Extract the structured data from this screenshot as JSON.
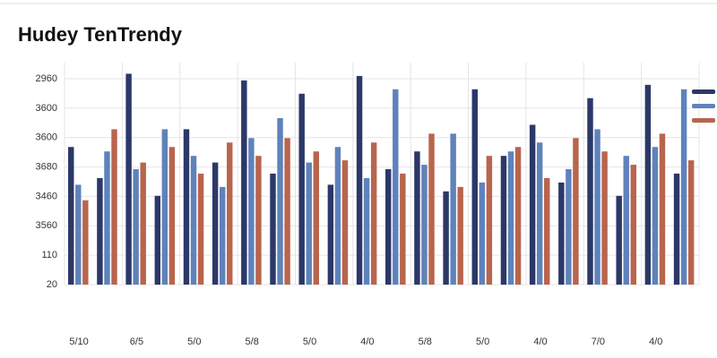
{
  "chart_data": {
    "type": "bar",
    "title": "Hudey TenTrendy",
    "y_labels": [
      "2960",
      "3600",
      "3600",
      "3680",
      "3460",
      "3560",
      "110",
      "20"
    ],
    "categories": [
      "5/10",
      null,
      "6/5",
      null,
      "5/0",
      null,
      "5/8",
      null,
      "5/0",
      null,
      "4/0",
      null,
      "5/8",
      null,
      "5/0",
      null,
      "4/0",
      null,
      "7/0",
      null,
      "4/0",
      null
    ],
    "ylim": [
      0,
      100
    ],
    "grid": true,
    "series": [
      {
        "color": "#2b3868",
        "values": [
          62,
          48,
          95,
          40,
          70,
          55,
          92,
          50,
          86,
          45,
          94,
          52,
          60,
          42,
          88,
          58,
          72,
          46,
          84,
          40,
          90,
          50
        ]
      },
      {
        "color": "#5f82bb",
        "values": [
          45,
          60,
          52,
          70,
          58,
          44,
          66,
          75,
          55,
          62,
          48,
          88,
          54,
          68,
          46,
          60,
          64,
          52,
          70,
          58,
          62,
          88
        ]
      },
      {
        "color": "#b8654e",
        "values": [
          38,
          70,
          55,
          62,
          50,
          64,
          58,
          66,
          60,
          56,
          64,
          50,
          68,
          44,
          58,
          62,
          48,
          66,
          60,
          54,
          68,
          56
        ]
      }
    ]
  }
}
